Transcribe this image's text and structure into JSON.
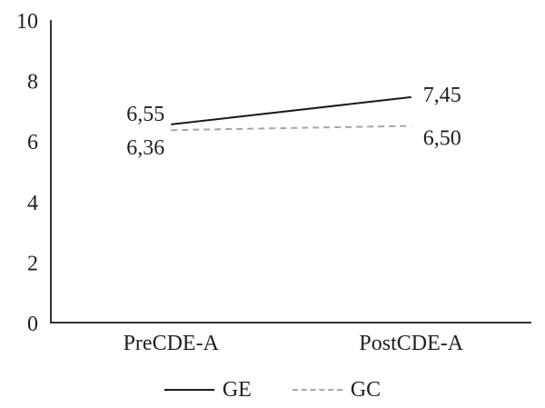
{
  "chart_data": {
    "type": "line",
    "categories": [
      "PreCDE-A",
      "PostCDE-A"
    ],
    "series": [
      {
        "name": "GE",
        "values": [
          6.55,
          7.45
        ],
        "labels": [
          "6,55",
          "7,45"
        ],
        "color": "#1a1a1a",
        "dash": false
      },
      {
        "name": "GC",
        "values": [
          6.36,
          6.5
        ],
        "labels": [
          "6,36",
          "6,50"
        ],
        "color": "#a6a6a6",
        "dash": true
      }
    ],
    "ylim": [
      0,
      10
    ],
    "ytick_values": [
      0,
      2,
      4,
      6,
      8,
      10
    ],
    "ytick_labels": [
      "0",
      "2",
      "4",
      "6",
      "8",
      "10"
    ],
    "decimal_separator": ",",
    "grid": false,
    "legend_position": "bottom"
  },
  "colors": {
    "background": "#ffffff",
    "axis": "#333333",
    "text": "#1f1f1f"
  }
}
